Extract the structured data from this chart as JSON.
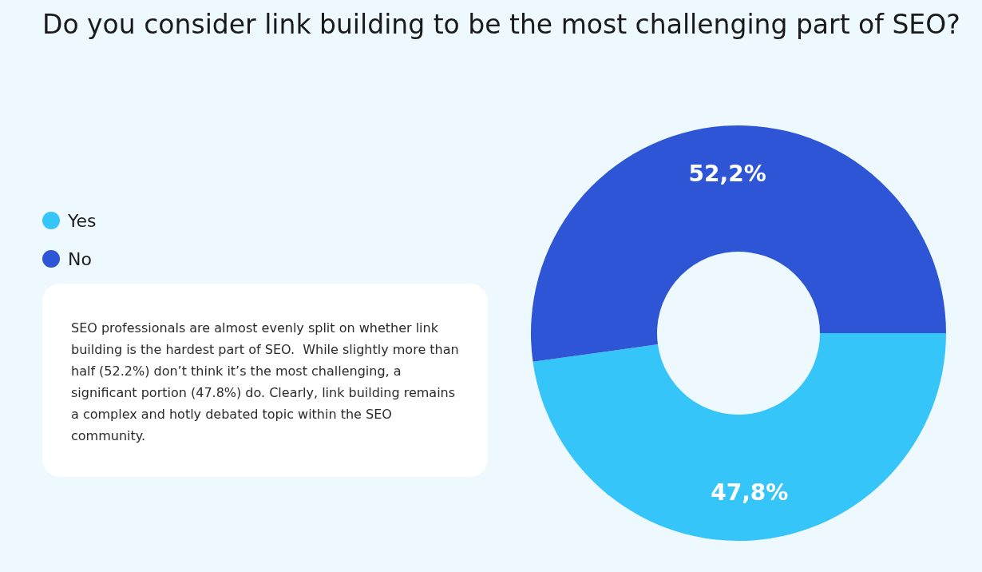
{
  "chart_data": {
    "type": "donut",
    "title": "Do you consider link building to be the most challenging part of SEO?",
    "categories": [
      "Yes",
      "No"
    ],
    "values": [
      47.8,
      52.2
    ],
    "colors": [
      "#36c5f9",
      "#2d55d6"
    ],
    "value_labels": [
      "47,8%",
      "52,2%"
    ],
    "legend": "left",
    "annotations": [
      "SEO professionals are almost evenly split on whether link building is the hardest part of SEO.  While slightly more than half (52.2%) don’t think it’s the most challenging, a significant portion (47.8%) do. Clearly, link building remains a complex and hotly debated topic within the SEO community."
    ]
  }
}
